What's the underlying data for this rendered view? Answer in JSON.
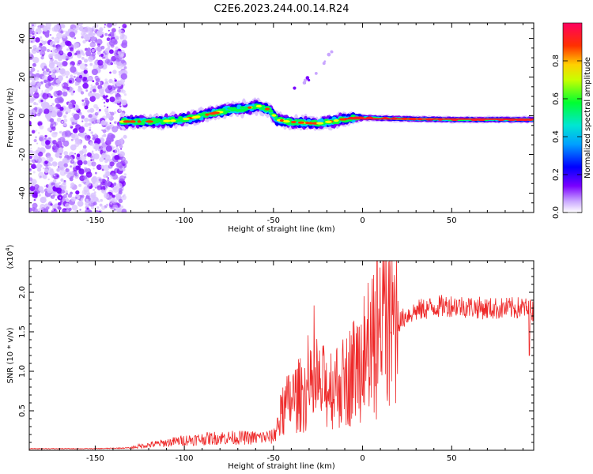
{
  "title": "C2E6.2023.244.00.14.R24",
  "chart_data": [
    {
      "type": "heatmap",
      "xlabel": "Height of straight line (km)",
      "ylabel": "Frequency (Hz)",
      "xlim": [
        -187,
        96
      ],
      "ylim": [
        -50,
        48
      ],
      "xticks": [
        -150,
        -100,
        -50,
        0,
        50
      ],
      "yticks": [
        -40,
        -20,
        0,
        20,
        40
      ],
      "colorbar": {
        "label": "Normalized spectral amplitude",
        "range": [
          0,
          1
        ],
        "ticks": [
          "0.0",
          "0.2",
          "0.4",
          "0.6",
          "0.8"
        ],
        "colors": [
          "#ffffff",
          "#7a00ff",
          "#0000ff",
          "#00c8ff",
          "#00ff44",
          "#ffff00",
          "#ff2020",
          "#ff0055"
        ]
      },
      "ridge": {
        "x": [
          -135,
          -120,
          -105,
          -95,
          -85,
          -75,
          -65,
          -58,
          -52,
          -48,
          -42,
          -35,
          -25,
          -18,
          -12,
          -5,
          0,
          20,
          50,
          95
        ],
        "y": [
          -3,
          -3,
          -2.5,
          -1,
          1,
          3,
          4,
          5,
          3,
          -2,
          -3,
          -3.5,
          -4,
          -3,
          -2,
          -1,
          -1,
          -1.5,
          -2,
          -2
        ]
      },
      "noise_region_x": [
        -187,
        -135
      ],
      "faint_trail": {
        "x": [
          -40,
          -32,
          -25,
          -20,
          -15
        ],
        "y": [
          12,
          18,
          23,
          30,
          36
        ]
      }
    },
    {
      "type": "line",
      "xlabel": "Height of straight line (km)",
      "ylabel": "SNR (10 * v/v)",
      "yexp": "(x10",
      "yexp_sup": "4",
      "yexp_close": ")",
      "xlim": [
        -187,
        96
      ],
      "ylim": [
        0,
        24000
      ],
      "xticks": [
        -150,
        -100,
        -50,
        0,
        50
      ],
      "yticks": [
        5000,
        10000,
        15000,
        20000
      ],
      "ytick_labels": [
        "0.5",
        "1.0",
        "1.5",
        "2.0"
      ],
      "color": "#ee2a2a",
      "envelope": {
        "x": [
          -187,
          -150,
          -130,
          -125,
          -110,
          -100,
          -80,
          -60,
          -50,
          -45,
          -40,
          -30,
          -20,
          -10,
          -5,
          0,
          5,
          10,
          15,
          20,
          25,
          30,
          40,
          50,
          60,
          70,
          80,
          90,
          96
        ],
        "y": [
          200,
          200,
          300,
          500,
          900,
          1200,
          1500,
          1500,
          1600,
          4500,
          6000,
          7000,
          7500,
          8000,
          9500,
          11000,
          12000,
          13000,
          14500,
          16000,
          17000,
          17500,
          18000,
          18200,
          18000,
          17800,
          17800,
          17900,
          17500
        ]
      }
    }
  ]
}
